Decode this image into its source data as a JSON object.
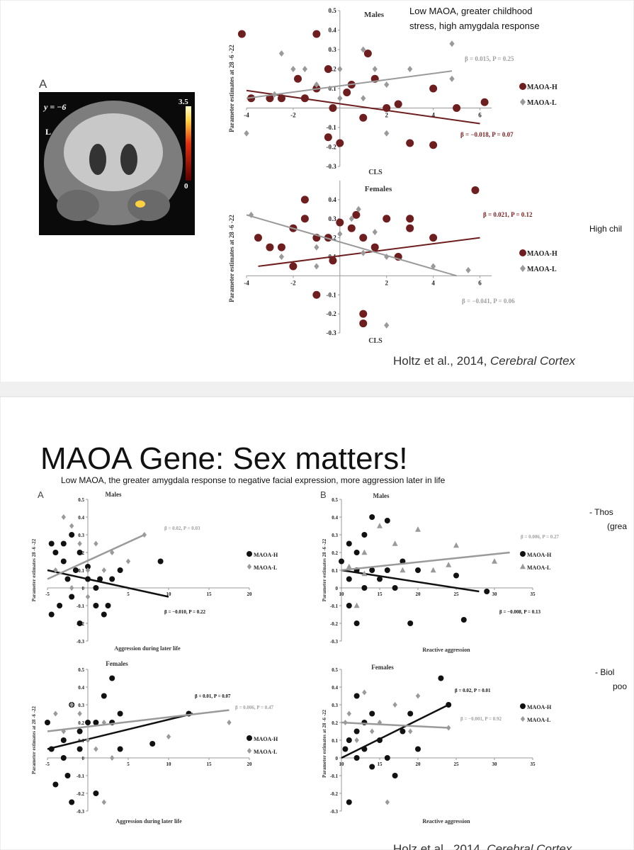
{
  "slide1": {
    "figure_a": {
      "panel": "A",
      "coordinate": "y = −6",
      "side": "L",
      "scale_max": "3.5",
      "scale_min": "0"
    },
    "note": [
      "Low MAOA, greater childhood",
      "stress, high amygdala response"
    ],
    "side_text": "High chil",
    "citation": "Holtz et al., 2014, ",
    "citation_journal": "Cerebral Cortex"
  },
  "slide2": {
    "title": "MAOA Gene: Sex matters!",
    "subtitle": "Low MAOA, the greater amygdala response to negative facial expression, more aggression later in life",
    "bullets": [
      [
        "- Thos",
        "(grea"
      ],
      [
        "- Biol",
        "poo"
      ]
    ],
    "citation": "Holz et al., 2014, ",
    "citation_journal": "Cerebral Cortex"
  },
  "chart_data": [
    {
      "type": "scatter",
      "title": "Males",
      "x_label": "CLS",
      "y_label": "Parameter estimates at 28 -6 -22",
      "xlim": [
        -4,
        6.5
      ],
      "ylim": [
        -0.3,
        0.5
      ],
      "xticks": [
        -4,
        -2,
        2,
        4,
        6
      ],
      "yticks": [
        -0.3,
        -0.2,
        -0.1,
        0.1,
        0.2,
        0.3,
        0.4,
        0.5
      ],
      "annotations": [
        {
          "text": "β = 0.015, P = 0.25",
          "color": "#a0a0a0"
        },
        {
          "text": "β = −0.018, P = 0.07",
          "color": "#7a2222"
        }
      ],
      "series": [
        {
          "name": "MAOA-H",
          "color": "#6e1e1e",
          "marker": "circle",
          "x": [
            -4.2,
            -3,
            -3.8,
            -2.5,
            -1.5,
            -1,
            -1,
            -0.5,
            -0.3,
            0,
            0.5,
            1,
            1.2,
            2,
            2.5,
            3,
            4,
            4,
            5,
            6.2,
            -0.5,
            0.3,
            1.5,
            -1.8
          ],
          "values": [
            0.38,
            0.05,
            0.05,
            0.05,
            0.05,
            0.1,
            0.38,
            -0.15,
            0,
            -0.18,
            0.12,
            -0.05,
            0.28,
            0,
            0.02,
            -0.18,
            0.1,
            -0.19,
            0,
            0.03,
            0.2,
            0.08,
            0.15,
            0.15
          ],
          "fit": {
            "x": [
              -4,
              6
            ],
            "values": [
              0.09,
              -0.08
            ]
          }
        },
        {
          "name": "MAOA-L",
          "color": "#9a9a9a",
          "marker": "diamond",
          "x": [
            -4,
            -2.5,
            -2,
            -1.5,
            -1,
            0,
            0,
            1,
            1.5,
            2,
            2,
            3,
            4.8,
            4.8,
            -2.8,
            1
          ],
          "values": [
            -0.13,
            0.28,
            0.2,
            0.2,
            0.12,
            0.05,
            0.2,
            0.3,
            0.2,
            -0.13,
            0.12,
            0.2,
            0.33,
            0.15,
            0.07,
            0.05
          ],
          "fit": {
            "x": [
              -4,
              4.8
            ],
            "values": [
              0.05,
              0.19
            ]
          }
        }
      ]
    },
    {
      "type": "scatter",
      "title": "Females",
      "x_label": "CLS",
      "y_label": "Parameter estimates at 28 -6 -22",
      "xlim": [
        -4,
        6.5
      ],
      "ylim": [
        -0.3,
        0.5
      ],
      "xticks": [
        -4,
        -2,
        2,
        4,
        6
      ],
      "yticks": [
        -0.3,
        -0.2,
        -0.1,
        0.1,
        0.2,
        0.3,
        0.4
      ],
      "annotations": [
        {
          "text": "β = 0.021, P = 0.12",
          "color": "#7a2222"
        },
        {
          "text": "β = −0.041, P = 0.06",
          "color": "#a0a0a0"
        }
      ],
      "series": [
        {
          "name": "MAOA-H",
          "color": "#6e1e1e",
          "marker": "circle",
          "x": [
            -3.5,
            -3,
            -2.5,
            -2,
            -2,
            -1.5,
            -1.5,
            -1,
            -1,
            -0.5,
            0,
            0.5,
            0.7,
            1,
            1,
            1,
            1.5,
            2,
            2.5,
            3,
            3,
            4,
            5.8,
            -0.3
          ],
          "values": [
            0.2,
            0.15,
            0.15,
            0.05,
            0.25,
            0.3,
            0.4,
            0.2,
            -0.1,
            0.2,
            0.28,
            0.25,
            0.32,
            0.2,
            -0.2,
            -0.25,
            0.15,
            0.3,
            0.1,
            0.3,
            0.25,
            0.2,
            0.45,
            0.08
          ],
          "fit": {
            "x": [
              -3.5,
              6
            ],
            "values": [
              0.05,
              0.2
            ]
          }
        },
        {
          "name": "MAOA-L",
          "color": "#9a9a9a",
          "marker": "diamond",
          "x": [
            -3.8,
            -2.5,
            -1,
            0,
            0.5,
            0.8,
            1,
            1.5,
            2,
            4,
            5.5,
            2,
            -1
          ],
          "values": [
            0.32,
            0.1,
            0.15,
            0.22,
            0.3,
            0.35,
            0.12,
            0.23,
            0.1,
            0.05,
            0.03,
            -0.26,
            0.05
          ],
          "fit": {
            "x": [
              -4,
              5
            ],
            "values": [
              0.32,
              0
            ]
          }
        }
      ]
    },
    {
      "type": "scatter",
      "panel": "A",
      "title": "Males",
      "x_label": "Aggression during later life",
      "y_label": "Parameter estimates 28 -6 -22",
      "xlim": [
        -5,
        20
      ],
      "ylim": [
        -0.3,
        0.5
      ],
      "xticks": [
        -5,
        5,
        10,
        15,
        20
      ],
      "yticks": [
        -0.3,
        -0.2,
        -0.1,
        0,
        0.1,
        0.2,
        0.3,
        0.4,
        0.5
      ],
      "annotations": [
        {
          "text": "β = 0.02, P = 0.03",
          "color": "#a0a0a0"
        },
        {
          "text": "β = −0.010, P = 0.22",
          "color": "#111111"
        }
      ],
      "series": [
        {
          "name": "MAOA-H",
          "color": "#111111",
          "marker": "circle",
          "x": [
            -4.5,
            -4,
            -3.5,
            -3,
            -2.5,
            -2,
            -2,
            -1.5,
            -1,
            -1,
            0,
            0,
            1,
            1,
            1.5,
            2,
            2.5,
            3,
            4,
            9,
            -4.5,
            -3
          ],
          "values": [
            0.25,
            0.2,
            -0.1,
            0.15,
            0.05,
            0.3,
            -0.05,
            0.1,
            0.2,
            -0.2,
            0.05,
            0.12,
            0,
            -0.1,
            0.05,
            -0.15,
            -0.1,
            0.05,
            0.1,
            0.15,
            -0.15,
            0.25
          ],
          "fit": {
            "x": [
              -5,
              10
            ],
            "values": [
              0.1,
              -0.05
            ]
          }
        },
        {
          "name": "MAOA-L",
          "color": "#9a9a9a",
          "marker": "diamond",
          "x": [
            -4,
            -3,
            -2,
            -1,
            0,
            0,
            1,
            2,
            3,
            5,
            7,
            -2
          ],
          "values": [
            0.1,
            0.4,
            0.35,
            0.25,
            0.1,
            -0.05,
            0.25,
            0.1,
            0.2,
            0.15,
            0.3,
            0
          ],
          "fit": {
            "x": [
              -5,
              7
            ],
            "values": [
              0.05,
              0.3
            ]
          }
        }
      ]
    },
    {
      "type": "scatter",
      "panel": "B",
      "title": "Males",
      "x_label": "Reactive aggression",
      "y_label": "Parameter estimates 28 -6 -22",
      "xlim": [
        10,
        35
      ],
      "ylim": [
        -0.3,
        0.5
      ],
      "xticks": [
        10,
        15,
        20,
        25,
        30,
        35
      ],
      "yticks": [
        -0.3,
        -0.2,
        -0.1,
        0,
        0.1,
        0.2,
        0.3,
        0.4,
        0.5
      ],
      "annotations": [
        {
          "text": "β = 0.006, P = 0.27",
          "color": "#a0a0a0"
        },
        {
          "text": "β = −0.008, P = 0.13",
          "color": "#111111"
        }
      ],
      "series": [
        {
          "name": "MAOA-H",
          "color": "#111111",
          "marker": "circle",
          "x": [
            10,
            11,
            11,
            12,
            12,
            13,
            13,
            14,
            14,
            15,
            16,
            16,
            17,
            18,
            19,
            20,
            26,
            25,
            29,
            12,
            11
          ],
          "values": [
            0.15,
            0.05,
            -0.1,
            0.1,
            0.2,
            0.3,
            0,
            0.4,
            0.1,
            0.05,
            0.38,
            0.1,
            0,
            0.15,
            -0.2,
            0.1,
            -0.18,
            0.07,
            -0.02,
            -0.2,
            0.25
          ],
          "fit": {
            "x": [
              10,
              28
            ],
            "values": [
              0.1,
              -0.02
            ]
          }
        },
        {
          "name": "MAOA-L",
          "color": "#9a9a9a",
          "marker": "triangle",
          "x": [
            11,
            12,
            13,
            15,
            17,
            18,
            20,
            22,
            25,
            24,
            30,
            13
          ],
          "values": [
            0.12,
            -0.1,
            0.2,
            0.35,
            0.25,
            0.1,
            0.33,
            0.1,
            0.24,
            0.13,
            0.15,
            0.08
          ],
          "fit": {
            "x": [
              10,
              32
            ],
            "values": [
              0.1,
              0.2
            ]
          }
        }
      ]
    },
    {
      "type": "scatter",
      "title": "Females",
      "x_label": "Aggression during later life",
      "y_label": "Parameter estimates at 28 -6 -22",
      "xlim": [
        -5,
        20
      ],
      "ylim": [
        -0.3,
        0.5
      ],
      "xticks": [
        -5,
        5,
        10,
        15,
        20
      ],
      "yticks": [
        -0.3,
        -0.2,
        -0.1,
        0,
        0.1,
        0.2,
        0.3,
        0.4,
        0.5
      ],
      "annotations": [
        {
          "text": "β = 0.01, P = 0.07",
          "color": "#111111"
        },
        {
          "text": "β = 0.006, P = 0.47",
          "color": "#a0a0a0"
        }
      ],
      "series": [
        {
          "name": "MAOA-H",
          "color": "#111111",
          "marker": "circle",
          "x": [
            -5,
            -4.5,
            -4,
            -3,
            -2.5,
            -2,
            -2,
            -1,
            -1,
            0,
            1,
            2,
            3,
            3,
            4,
            4,
            8,
            12.5,
            1,
            -3
          ],
          "values": [
            0.2,
            0.05,
            -0.15,
            0.1,
            -0.1,
            0.3,
            -0.25,
            0.15,
            0.05,
            0.2,
            0.2,
            0.35,
            0.45,
            0.2,
            0.25,
            0.05,
            0.08,
            0.25,
            -0.2,
            0
          ],
          "fit": {
            "x": [
              -5,
              13
            ],
            "values": [
              0.05,
              0.25
            ]
          }
        },
        {
          "name": "MAOA-L",
          "color": "#9a9a9a",
          "marker": "diamond",
          "x": [
            -4,
            -3,
            -2,
            -1,
            0,
            1,
            2,
            3,
            10,
            17.5,
            2
          ],
          "values": [
            0.25,
            0.15,
            0.3,
            0.25,
            0.1,
            0.05,
            0.2,
            0,
            0.12,
            0.2,
            -0.25
          ],
          "fit": {
            "x": [
              -5,
              17.5
            ],
            "values": [
              0.15,
              0.27
            ]
          }
        }
      ]
    },
    {
      "type": "scatter",
      "title": "Females",
      "x_label": "Reactive aggression",
      "y_label": "Parameter estimates at 28 -6 -22",
      "xlim": [
        10,
        35
      ],
      "ylim": [
        -0.3,
        0.5
      ],
      "xticks": [
        10,
        15,
        20,
        25,
        30,
        35
      ],
      "yticks": [
        -0.3,
        -0.2,
        -0.1,
        0,
        0.1,
        0.2,
        0.3,
        0.4,
        0.5
      ],
      "annotations": [
        {
          "text": "β = 0.02, P = 0.01",
          "color": "#111111"
        },
        {
          "text": "β = −0.001, P = 0.92",
          "color": "#a0a0a0"
        }
      ],
      "series": [
        {
          "name": "MAOA-H",
          "color": "#111111",
          "marker": "circle",
          "x": [
            10.5,
            11,
            11,
            12,
            12,
            13,
            13,
            14,
            14,
            15,
            16,
            17,
            18,
            19,
            20,
            23,
            24,
            12
          ],
          "values": [
            0.05,
            0.1,
            -0.25,
            0,
            0.15,
            0.2,
            0.05,
            -0.05,
            0.25,
            0.1,
            0,
            -0.1,
            0.15,
            0.25,
            0.05,
            0.45,
            0.3,
            0.35
          ],
          "fit": {
            "x": [
              10,
              24
            ],
            "values": [
              0,
              0.3
            ]
          }
        },
        {
          "name": "MAOA-L",
          "color": "#9a9a9a",
          "marker": "diamond",
          "x": [
            10.5,
            11,
            12,
            13,
            14,
            15,
            17,
            19,
            24,
            16,
            20
          ],
          "values": [
            0.2,
            0.25,
            0.1,
            0.37,
            0.15,
            0.2,
            0.3,
            0.15,
            0.17,
            -0.25,
            0.35
          ],
          "fit": {
            "x": [
              10,
              24
            ],
            "values": [
              0.2,
              0.17
            ]
          }
        }
      ]
    }
  ]
}
